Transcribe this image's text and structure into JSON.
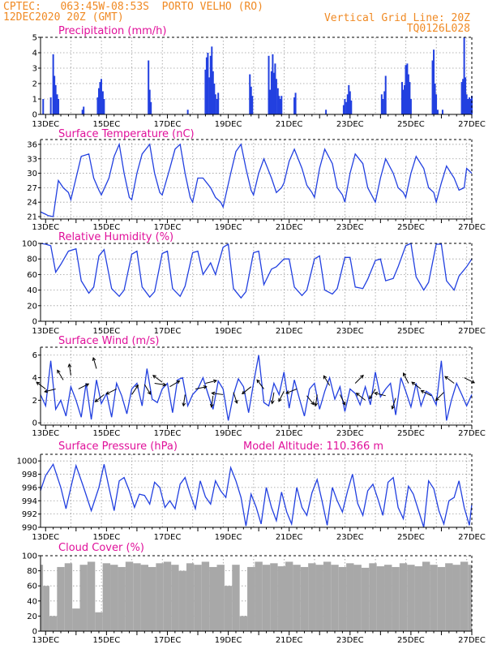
{
  "header": {
    "line1_left": "CPTEC:   063:45W-08:53S  PORTO VELHO (RO)",
    "line2_left": "12DEC2020 20Z (GMT)",
    "line1_right": "Vertical Grid Line: 20Z",
    "line2_right": "TQ0126L028"
  },
  "colors": {
    "header": "#f08a24",
    "title": "#e0109a",
    "series": "#2240e0",
    "cloud": "#a8a8a8",
    "frame": "#000000",
    "grid": "#9a9a9a"
  },
  "x_axis": {
    "start_day": 12.8333,
    "end_day": 27.0,
    "tick_labels": [
      "13DEC",
      "15DEC",
      "17DEC",
      "19DEC",
      "21DEC",
      "23DEC",
      "25DEC",
      "27DEC"
    ]
  },
  "chart_data": [
    {
      "type": "bar",
      "title": "Precipitation (mm/h)",
      "ylim": [
        0,
        5
      ],
      "ytick_labels": [
        "0",
        "1",
        "2",
        "3",
        "4",
        "5"
      ],
      "x": [
        12.92,
        13.17,
        13.25,
        13.29,
        13.33,
        13.38,
        13.42,
        14.21,
        14.25,
        14.71,
        14.75,
        14.79,
        14.83,
        14.88,
        14.92,
        16.38,
        16.42,
        16.46,
        17.67,
        18.25,
        18.29,
        18.33,
        18.38,
        18.42,
        18.46,
        18.5,
        18.54,
        18.58,
        18.63,
        18.67,
        19.71,
        19.75,
        19.79,
        20.33,
        20.38,
        20.42,
        20.46,
        20.5,
        20.54,
        20.58,
        20.63,
        20.67,
        20.71,
        20.75,
        21.17,
        21.21,
        22.21,
        22.79,
        22.83,
        22.88,
        22.92,
        22.96,
        23.0,
        23.04,
        24.04,
        24.08,
        24.13,
        24.17,
        24.71,
        24.75,
        24.79,
        24.83,
        24.88,
        24.92,
        24.96,
        25.0,
        25.71,
        25.75,
        25.79,
        25.83,
        25.88,
        26.04,
        26.67,
        26.71,
        26.75,
        26.79,
        26.83,
        26.88,
        26.92,
        26.96,
        27.0
      ],
      "values": [
        1.0,
        1.1,
        3.9,
        2.5,
        1.9,
        1.3,
        1.0,
        0.3,
        0.5,
        1.1,
        1.7,
        2.1,
        2.3,
        1.5,
        1.0,
        3.5,
        1.6,
        0.8,
        0.3,
        2.9,
        3.7,
        4.0,
        2.4,
        3.8,
        4.4,
        2.8,
        2.0,
        1.3,
        1.0,
        1.4,
        2.6,
        1.8,
        1.2,
        3.8,
        1.6,
        2.8,
        3.9,
        2.7,
        3.3,
        2.3,
        1.7,
        1.2,
        1.0,
        1.2,
        1.1,
        1.4,
        0.3,
        0.6,
        1.0,
        0.8,
        1.3,
        1.9,
        1.5,
        0.9,
        1.3,
        1.0,
        1.5,
        2.5,
        2.1,
        1.6,
        1.9,
        3.2,
        3.3,
        2.6,
        2.1,
        1.0,
        3.5,
        4.2,
        2.0,
        1.3,
        0.3,
        0.3,
        2.1,
        2.3,
        5.0,
        2.4,
        1.3,
        1.0,
        1.1,
        1.0,
        1.2
      ]
    },
    {
      "type": "line",
      "title": "Surface Temperature (nC)",
      "ylim": [
        20.5,
        37
      ],
      "ytick_values": [
        21,
        24,
        27,
        30,
        33,
        36
      ],
      "ytick_labels": [
        "21",
        "24",
        "27",
        "30",
        "33",
        "36"
      ],
      "x": [
        12.83,
        13.0,
        13.08,
        13.25,
        13.42,
        13.58,
        13.75,
        13.83,
        14.0,
        14.17,
        14.42,
        14.58,
        14.75,
        14.83,
        15.08,
        15.25,
        15.42,
        15.58,
        15.75,
        15.83,
        16.0,
        16.17,
        16.42,
        16.58,
        16.75,
        16.83,
        17.08,
        17.25,
        17.42,
        17.58,
        17.75,
        17.83,
        18.0,
        18.17,
        18.42,
        18.58,
        18.75,
        18.83,
        19.08,
        19.25,
        19.42,
        19.58,
        19.75,
        19.83,
        20.0,
        20.17,
        20.42,
        20.58,
        20.75,
        20.83,
        21.0,
        21.17,
        21.42,
        21.58,
        21.75,
        21.83,
        22.0,
        22.17,
        22.42,
        22.58,
        22.75,
        22.83,
        23.0,
        23.17,
        23.42,
        23.58,
        23.75,
        23.83,
        24.0,
        24.17,
        24.42,
        24.58,
        24.75,
        24.83,
        25.0,
        25.17,
        25.42,
        25.58,
        25.75,
        25.83,
        26.0,
        26.17,
        26.42,
        26.58,
        26.75,
        26.83,
        27.0
      ],
      "values": [
        22.0,
        21.5,
        21.2,
        21.0,
        28.5,
        27.0,
        26.0,
        24.5,
        29.0,
        33.5,
        34.0,
        29.0,
        26.5,
        25.5,
        29.0,
        33.5,
        36.0,
        30.0,
        25.0,
        24.5,
        30.0,
        34.0,
        36.0,
        30.0,
        26.0,
        25.5,
        31.0,
        35.0,
        36.0,
        30.0,
        25.0,
        24.0,
        29.0,
        29.0,
        27.0,
        25.0,
        24.0,
        23.0,
        30.0,
        34.5,
        36.0,
        31.0,
        26.5,
        25.5,
        30.0,
        33.0,
        29.0,
        26.0,
        27.0,
        28.0,
        32.5,
        35.0,
        31.0,
        27.5,
        26.0,
        25.0,
        31.0,
        35.0,
        32.0,
        27.0,
        25.5,
        24.0,
        30.0,
        34.0,
        32.0,
        27.0,
        25.0,
        24.0,
        29.0,
        33.0,
        30.0,
        27.0,
        26.0,
        25.0,
        30.0,
        33.5,
        31.0,
        27.0,
        26.0,
        24.0,
        28.0,
        31.5,
        29.0,
        26.5,
        27.0,
        31.0,
        30.0
      ]
    },
    {
      "type": "line",
      "title": "Relative Humidity (%)",
      "ylim": [
        0,
        100
      ],
      "ytick_values": [
        0,
        20,
        40,
        60,
        80,
        100
      ],
      "ytick_labels": [
        "0",
        "20",
        "40",
        "60",
        "80",
        "100"
      ],
      "x": [
        12.83,
        13.0,
        13.17,
        13.33,
        13.5,
        13.75,
        14.0,
        14.17,
        14.42,
        14.58,
        14.75,
        14.92,
        15.17,
        15.42,
        15.58,
        15.83,
        16.0,
        16.17,
        16.42,
        16.58,
        16.83,
        17.0,
        17.17,
        17.42,
        17.58,
        17.83,
        18.0,
        18.17,
        18.42,
        18.58,
        18.83,
        19.0,
        19.17,
        19.42,
        19.58,
        19.83,
        20.0,
        20.17,
        20.42,
        20.58,
        20.83,
        21.0,
        21.17,
        21.42,
        21.58,
        21.83,
        22.0,
        22.17,
        22.42,
        22.58,
        22.83,
        23.0,
        23.17,
        23.42,
        23.58,
        23.83,
        24.0,
        24.17,
        24.42,
        24.58,
        24.83,
        25.0,
        25.17,
        25.42,
        25.58,
        25.83,
        26.0,
        26.17,
        26.42,
        26.58,
        26.83,
        27.0
      ],
      "values": [
        100,
        99,
        97,
        63,
        73,
        90,
        93,
        52,
        36,
        44,
        84,
        92,
        42,
        32,
        40,
        86,
        90,
        44,
        31,
        38,
        87,
        90,
        42,
        32,
        45,
        88,
        90,
        60,
        75,
        60,
        95,
        99,
        42,
        30,
        38,
        88,
        90,
        47,
        67,
        70,
        80,
        80,
        44,
        33,
        40,
        80,
        84,
        40,
        35,
        42,
        82,
        82,
        44,
        42,
        54,
        78,
        80,
        52,
        55,
        70,
        97,
        100,
        57,
        40,
        50,
        99,
        99,
        52,
        40,
        58,
        70,
        80
      ]
    },
    {
      "type": "line",
      "title": "Surface Wind (m/s)",
      "ylim": [
        -0.2,
        6.7
      ],
      "ytick_values": [
        0,
        2,
        4,
        6
      ],
      "ytick_labels": [
        "0",
        "2",
        "4",
        "6"
      ],
      "x": [
        12.83,
        13.0,
        13.17,
        13.33,
        13.5,
        13.67,
        13.83,
        14.0,
        14.17,
        14.33,
        14.5,
        14.67,
        14.83,
        15.0,
        15.17,
        15.33,
        15.5,
        15.67,
        15.83,
        16.0,
        16.17,
        16.33,
        16.5,
        16.67,
        16.83,
        17.0,
        17.17,
        17.33,
        17.5,
        17.67,
        17.83,
        18.0,
        18.17,
        18.33,
        18.5,
        18.67,
        18.83,
        19.0,
        19.17,
        19.33,
        19.5,
        19.67,
        19.83,
        20.0,
        20.17,
        20.33,
        20.5,
        20.67,
        20.83,
        21.0,
        21.17,
        21.33,
        21.5,
        21.67,
        21.83,
        22.0,
        22.17,
        22.33,
        22.5,
        22.67,
        22.83,
        23.0,
        23.17,
        23.33,
        23.5,
        23.67,
        23.83,
        24.0,
        24.17,
        24.33,
        24.5,
        24.67,
        24.83,
        25.0,
        25.17,
        25.33,
        25.5,
        25.67,
        25.83,
        26.0,
        26.17,
        26.33,
        26.5,
        26.67,
        26.83,
        27.0
      ],
      "values": [
        2.5,
        1.5,
        5.5,
        1.2,
        2.0,
        0.6,
        3.2,
        2.0,
        0.5,
        3.5,
        0.3,
        3.8,
        1.7,
        2.6,
        0.5,
        3.5,
        2.4,
        0.8,
        3.0,
        3.5,
        1.5,
        4.8,
        2.1,
        1.8,
        3.0,
        3.5,
        0.9,
        3.8,
        4.0,
        1.5,
        2.5,
        3.0,
        4.0,
        2.6,
        1.2,
        3.7,
        3.0,
        0.2,
        2.5,
        3.9,
        3.2,
        0.9,
        3.5,
        6.0,
        1.8,
        1.5,
        3.5,
        2.5,
        4.5,
        1.3,
        3.8,
        2.2,
        0.6,
        3.0,
        3.5,
        1.2,
        2.8,
        4.0,
        2.1,
        3.2,
        1.0,
        3.0,
        2.6,
        1.6,
        3.2,
        1.6,
        4.5,
        2.3,
        3.0,
        3.5,
        0.7,
        4.0,
        2.8,
        1.4,
        3.5,
        1.5,
        2.8,
        2.5,
        1.6,
        5.5,
        0.2,
        2.0,
        3.5,
        2.5,
        1.5,
        2.5
      ],
      "vectors": [
        {
          "x": 13.0,
          "y": 3.0,
          "u": -4,
          "v": -3
        },
        {
          "x": 13.33,
          "y": 3.0,
          "u": -4,
          "v": 1
        },
        {
          "x": 13.58,
          "y": 3.8,
          "u": -3,
          "v": -5
        },
        {
          "x": 13.83,
          "y": 4.2,
          "u": -1,
          "v": -7
        },
        {
          "x": 14.08,
          "y": 3.0,
          "u": 4,
          "v": -2
        },
        {
          "x": 14.67,
          "y": 4.8,
          "u": -2,
          "v": -7
        },
        {
          "x": 14.92,
          "y": 2.5,
          "u": -5,
          "v": 4
        },
        {
          "x": 15.33,
          "y": 3.0,
          "u": -4,
          "v": 2
        },
        {
          "x": 15.83,
          "y": 2.5,
          "u": 4,
          "v": -6
        },
        {
          "x": 16.25,
          "y": 3.4,
          "u": 3,
          "v": 5
        },
        {
          "x": 16.58,
          "y": 3.5,
          "u": 7,
          "v": 1
        },
        {
          "x": 16.83,
          "y": 3.6,
          "u": -4,
          "v": -3
        },
        {
          "x": 17.08,
          "y": 3.2,
          "u": 5,
          "v": -3
        },
        {
          "x": 17.58,
          "y": 2.5,
          "u": -1,
          "v": 7
        },
        {
          "x": 17.92,
          "y": 3.0,
          "u": 5,
          "v": -1
        },
        {
          "x": 18.25,
          "y": 3.5,
          "u": 8,
          "v": -2
        },
        {
          "x": 18.5,
          "y": 2.4,
          "u": -1,
          "v": 7
        },
        {
          "x": 18.83,
          "y": 2.5,
          "u": -7,
          "v": -1
        },
        {
          "x": 19.17,
          "y": 2.7,
          "u": 2,
          "v": 6
        },
        {
          "x": 19.75,
          "y": 3.2,
          "u": -5,
          "v": 4
        },
        {
          "x": 20.17,
          "y": 3.0,
          "u": -3,
          "v": -4
        },
        {
          "x": 20.5,
          "y": 2.7,
          "u": -1,
          "v": 6
        },
        {
          "x": 20.83,
          "y": 2.8,
          "u": -3,
          "v": 6
        },
        {
          "x": 21.25,
          "y": 3.0,
          "u": -5,
          "v": 2
        },
        {
          "x": 21.58,
          "y": 2.4,
          "u": 4,
          "v": 5
        },
        {
          "x": 21.92,
          "y": 2.5,
          "u": -1,
          "v": 7
        },
        {
          "x": 22.33,
          "y": 3.3,
          "u": -3,
          "v": -5
        },
        {
          "x": 22.67,
          "y": 2.5,
          "u": 3,
          "v": 6
        },
        {
          "x": 23.17,
          "y": 3.5,
          "u": 4,
          "v": -4
        },
        {
          "x": 23.5,
          "y": 2.0,
          "u": -5,
          "v": -4
        },
        {
          "x": 23.83,
          "y": 3.0,
          "u": -3,
          "v": 5
        },
        {
          "x": 24.17,
          "y": 2.4,
          "u": -4,
          "v": -1
        },
        {
          "x": 24.5,
          "y": 2.2,
          "u": -2,
          "v": 6
        },
        {
          "x": 24.92,
          "y": 3.5,
          "u": -2,
          "v": -4
        },
        {
          "x": 25.33,
          "y": 3.0,
          "u": -4,
          "v": -3
        },
        {
          "x": 25.67,
          "y": 2.4,
          "u": -4,
          "v": -2
        },
        {
          "x": 26.08,
          "y": 2.7,
          "u": -4,
          "v": 4
        },
        {
          "x": 26.42,
          "y": 3.5,
          "u": -4,
          "v": -3
        },
        {
          "x": 26.75,
          "y": 4.0,
          "u": 6,
          "v": 3
        }
      ]
    },
    {
      "type": "line",
      "title": "Surface Pressure (hPa)",
      "subtitle": "Model Altitude: 110.366 m",
      "ylim": [
        990,
        1001
      ],
      "ytick_values": [
        990,
        992,
        994,
        996,
        998,
        1000
      ],
      "ytick_labels": [
        "990",
        "992",
        "994",
        "996",
        "998",
        "1000"
      ],
      "x": [
        12.83,
        13.0,
        13.25,
        13.5,
        13.67,
        13.83,
        14.0,
        14.25,
        14.5,
        14.75,
        14.92,
        15.08,
        15.25,
        15.42,
        15.58,
        15.75,
        15.92,
        16.08,
        16.25,
        16.42,
        16.58,
        16.75,
        16.92,
        17.08,
        17.25,
        17.42,
        17.58,
        17.75,
        17.92,
        18.08,
        18.25,
        18.42,
        18.58,
        18.75,
        18.92,
        19.08,
        19.25,
        19.42,
        19.58,
        19.75,
        19.92,
        20.08,
        20.25,
        20.42,
        20.58,
        20.75,
        20.92,
        21.08,
        21.25,
        21.42,
        21.58,
        21.75,
        21.92,
        22.08,
        22.25,
        22.42,
        22.58,
        22.75,
        22.92,
        23.08,
        23.25,
        23.42,
        23.58,
        23.75,
        23.92,
        24.08,
        24.25,
        24.42,
        24.58,
        24.75,
        24.92,
        25.08,
        25.25,
        25.42,
        25.58,
        25.75,
        25.92,
        26.08,
        26.25,
        26.42,
        26.58,
        26.75,
        26.92,
        27.0
      ],
      "values": [
        995.5,
        997.8,
        999.5,
        996.0,
        992.8,
        996.0,
        999.3,
        996.0,
        992.5,
        996.0,
        999.5,
        996.0,
        992.5,
        997.0,
        997.5,
        995.5,
        993.0,
        995.0,
        994.8,
        993.5,
        996.8,
        996.0,
        993.0,
        994.0,
        992.8,
        996.5,
        997.5,
        995.0,
        992.8,
        997.0,
        994.6,
        993.5,
        997.0,
        995.5,
        994.5,
        999.0,
        997.0,
        994.5,
        990.2,
        995.0,
        993.0,
        990.5,
        996.0,
        993.0,
        991.0,
        995.3,
        992.3,
        990.5,
        996.0,
        993.0,
        991.8,
        995.2,
        997.2,
        994.0,
        990.3,
        996.0,
        994.0,
        992.3,
        995.5,
        998.0,
        993.6,
        991.8,
        995.5,
        996.5,
        994.2,
        991.8,
        996.8,
        997.5,
        993.0,
        991.3,
        996.2,
        995.0,
        992.5,
        990.0,
        997.0,
        995.8,
        992.5,
        990.5,
        994.0,
        994.5,
        997.0,
        993.0,
        990.3,
        993.5
      ]
    },
    {
      "type": "bar",
      "title": "Cloud Cover (%)",
      "ylim": [
        0,
        100
      ],
      "ytick_values": [
        0,
        20,
        40,
        60,
        80,
        100
      ],
      "ytick_labels": [
        "0",
        "20",
        "40",
        "60",
        "80",
        "100"
      ],
      "x": [
        12.83,
        13.0,
        13.25,
        13.5,
        13.75,
        14.0,
        14.25,
        14.5,
        14.75,
        15.0,
        15.25,
        15.5,
        15.75,
        16.0,
        16.25,
        16.5,
        16.75,
        17.0,
        17.25,
        17.5,
        17.75,
        18.0,
        18.25,
        18.5,
        18.75,
        19.0,
        19.25,
        19.5,
        19.75,
        20.0,
        20.25,
        20.5,
        20.75,
        21.0,
        21.25,
        21.5,
        21.75,
        22.0,
        22.25,
        22.5,
        22.75,
        23.0,
        23.25,
        23.5,
        23.75,
        24.0,
        24.25,
        24.5,
        24.75,
        25.0,
        25.25,
        25.5,
        25.75,
        26.0,
        26.25,
        26.5,
        26.75,
        27.0
      ],
      "values": [
        88,
        60,
        20,
        85,
        90,
        30,
        88,
        92,
        25,
        90,
        88,
        85,
        92,
        90,
        88,
        85,
        90,
        92,
        88,
        80,
        90,
        88,
        92,
        85,
        88,
        60,
        88,
        20,
        85,
        92,
        88,
        90,
        86,
        92,
        88,
        85,
        90,
        88,
        92,
        88,
        85,
        90,
        88,
        84,
        90,
        86,
        88,
        85,
        90,
        88,
        86,
        92,
        88,
        85,
        90,
        88,
        92,
        88
      ]
    }
  ]
}
